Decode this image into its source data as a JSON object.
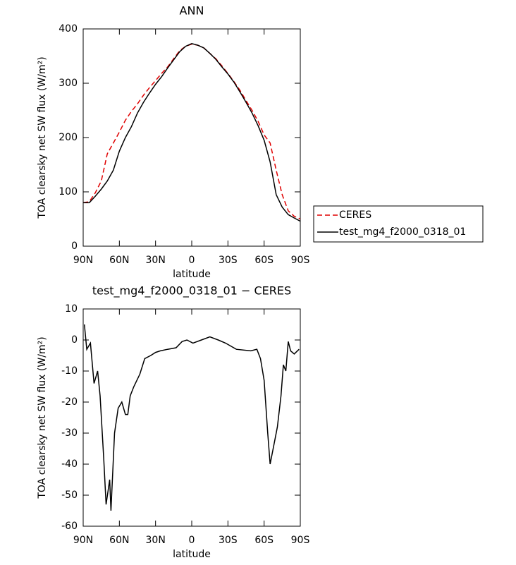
{
  "chart_data": [
    {
      "type": "line",
      "title": "ANN",
      "xlabel": "latitude",
      "ylabel": "TOA clearsky net SW flux (W/m²)",
      "xlim": [
        90,
        -90
      ],
      "xticks": [
        {
          "value": 90,
          "label": "90N"
        },
        {
          "value": 60,
          "label": "60N"
        },
        {
          "value": 30,
          "label": "30N"
        },
        0,
        {
          "value": -30,
          "label": "30S"
        },
        {
          "value": -60,
          "label": "60S"
        },
        {
          "value": -90,
          "label": "90S"
        }
      ],
      "ylim": [
        0,
        400
      ],
      "yticks": [
        0,
        100,
        200,
        300,
        400
      ],
      "legend": "outside-right",
      "x": [
        90,
        85,
        80,
        75,
        70,
        65,
        60,
        55,
        50,
        45,
        40,
        35,
        30,
        25,
        20,
        15,
        10,
        5,
        0,
        -5,
        -10,
        -15,
        -20,
        -25,
        -30,
        -35,
        -40,
        -45,
        -50,
        -55,
        -60,
        -65,
        -70,
        -75,
        -80,
        -85,
        -90
      ],
      "series": [
        {
          "name": "CERES",
          "color": "#e00000",
          "linestyle": "dashed",
          "values": [
            80,
            82,
            98,
            120,
            170,
            190,
            210,
            232,
            248,
            262,
            278,
            292,
            305,
            318,
            330,
            345,
            360,
            368,
            372,
            370,
            365,
            355,
            345,
            332,
            318,
            303,
            287,
            268,
            250,
            230,
            205,
            190,
            140,
            95,
            65,
            55,
            50
          ]
        },
        {
          "name": "test_mg4_f2000_0318_01",
          "color": "#000000",
          "linestyle": "solid",
          "values": [
            80,
            80,
            92,
            105,
            120,
            140,
            175,
            200,
            220,
            245,
            265,
            282,
            298,
            312,
            328,
            343,
            358,
            368,
            373,
            370,
            365,
            355,
            344,
            330,
            317,
            302,
            284,
            265,
            245,
            222,
            195,
            155,
            95,
            72,
            58,
            52,
            46
          ]
        }
      ]
    },
    {
      "type": "line",
      "title": "test_mg4_f2000_0318_01 − CERES",
      "xlabel": "latitude",
      "ylabel": "TOA clearsky net SW flux (W/m²)",
      "xlim": [
        90,
        -90
      ],
      "xticks": [
        {
          "value": 90,
          "label": "90N"
        },
        {
          "value": 60,
          "label": "60N"
        },
        {
          "value": 30,
          "label": "30N"
        },
        0,
        {
          "value": -30,
          "label": "30S"
        },
        {
          "value": -60,
          "label": "60S"
        },
        {
          "value": -90,
          "label": "90S"
        }
      ],
      "ylim": [
        -60,
        10
      ],
      "yticks": [
        -60,
        -50,
        -40,
        -30,
        -20,
        -10,
        0,
        10
      ],
      "x": [
        89,
        87,
        84,
        81,
        78,
        76,
        73,
        71,
        68,
        67,
        64,
        61,
        58,
        55,
        53,
        51,
        48,
        43,
        39,
        34,
        30,
        26,
        20,
        13,
        8,
        4,
        -1,
        -8,
        -15,
        -22,
        -28,
        -37,
        -49,
        -54,
        -57,
        -60,
        -63,
        -65,
        -69,
        -71,
        -74,
        -76,
        -78,
        -80,
        -82,
        -85,
        -89
      ],
      "series": [
        {
          "color": "#000000",
          "linestyle": "solid",
          "values": [
            5,
            -3,
            -1,
            -14,
            -10,
            -18,
            -38,
            -53,
            -45,
            -55,
            -30,
            -22,
            -20,
            -24,
            -24,
            -18,
            -15,
            -11,
            -6,
            -5,
            -4,
            -3.5,
            -3,
            -2.5,
            -0.5,
            0,
            -1,
            0,
            1,
            0,
            -1,
            -3,
            -3.5,
            -3,
            -6,
            -13,
            -30,
            -40,
            -32,
            -28,
            -18,
            -8,
            -10,
            -0.5,
            -3.5,
            -4.5,
            -3
          ]
        }
      ]
    }
  ]
}
